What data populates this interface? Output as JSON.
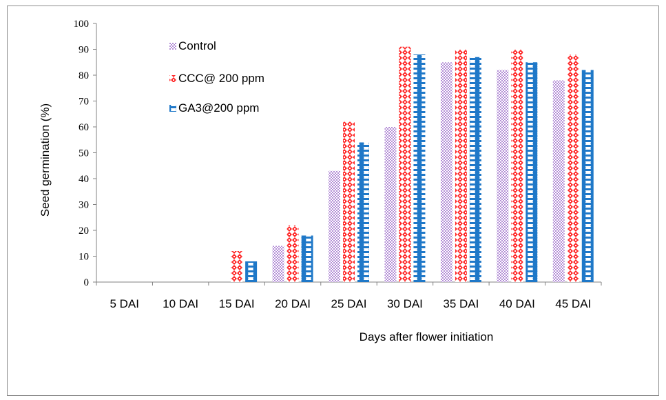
{
  "chart_data": {
    "type": "bar",
    "title": "",
    "xlabel": "Days after flower initiation",
    "ylabel": "Seed germination (%)",
    "ylim": [
      0,
      100
    ],
    "yticks": [
      "0",
      "10",
      "20",
      "30",
      "40",
      "50",
      "60",
      "70",
      "80",
      "90",
      "100"
    ],
    "categories": [
      "5 DAI",
      "10 DAI",
      "15 DAI",
      "20 DAI",
      "25 DAI",
      "30 DAI",
      "35 DAI",
      "40 DAI",
      "45 DAI"
    ],
    "series": [
      {
        "name": "Control",
        "color": "#b38ed6",
        "pattern": "fine-check",
        "values": [
          0,
          0,
          0,
          14,
          43,
          60,
          85,
          82,
          78
        ]
      },
      {
        "name": "CCC@ 200 ppm",
        "color": "#ff2a2a",
        "pattern": "diamond",
        "values": [
          0,
          0,
          12,
          22,
          62,
          91,
          90,
          90,
          88
        ]
      },
      {
        "name": "GA3@200 ppm",
        "color": "#1f78c8",
        "pattern": "circle",
        "values": [
          0,
          0,
          8,
          18,
          54,
          88,
          87,
          85,
          82
        ]
      }
    ],
    "legend_position": "top-left",
    "grid": false
  }
}
